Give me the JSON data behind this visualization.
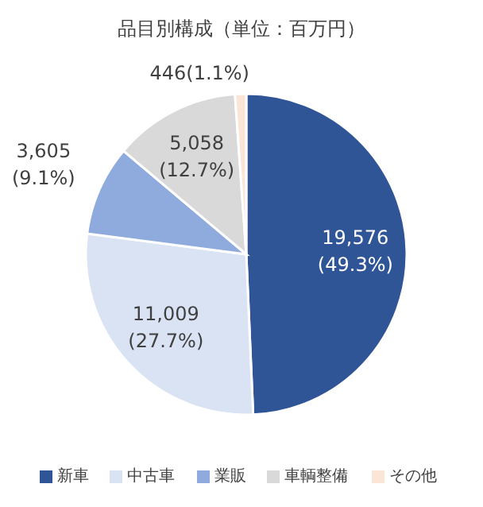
{
  "chart_data": {
    "type": "pie",
    "title": "品目別構成（単位：百万円）",
    "categories": [
      "新車",
      "中古車",
      "業販",
      "車輌整備",
      "その他"
    ],
    "values": [
      19576,
      11009,
      3605,
      5058,
      446
    ],
    "colors": [
      "#2f5597",
      "#dae3f3",
      "#8faadc",
      "#d9d9d9",
      "#fbe5d6"
    ],
    "value_labels": [
      "19,576\n(49.3%)",
      "11,009\n(27.7%)",
      "3,605\n(9.1%)",
      "5,058\n(12.7%)",
      "446(1.1%)"
    ],
    "legend": "bottom"
  }
}
